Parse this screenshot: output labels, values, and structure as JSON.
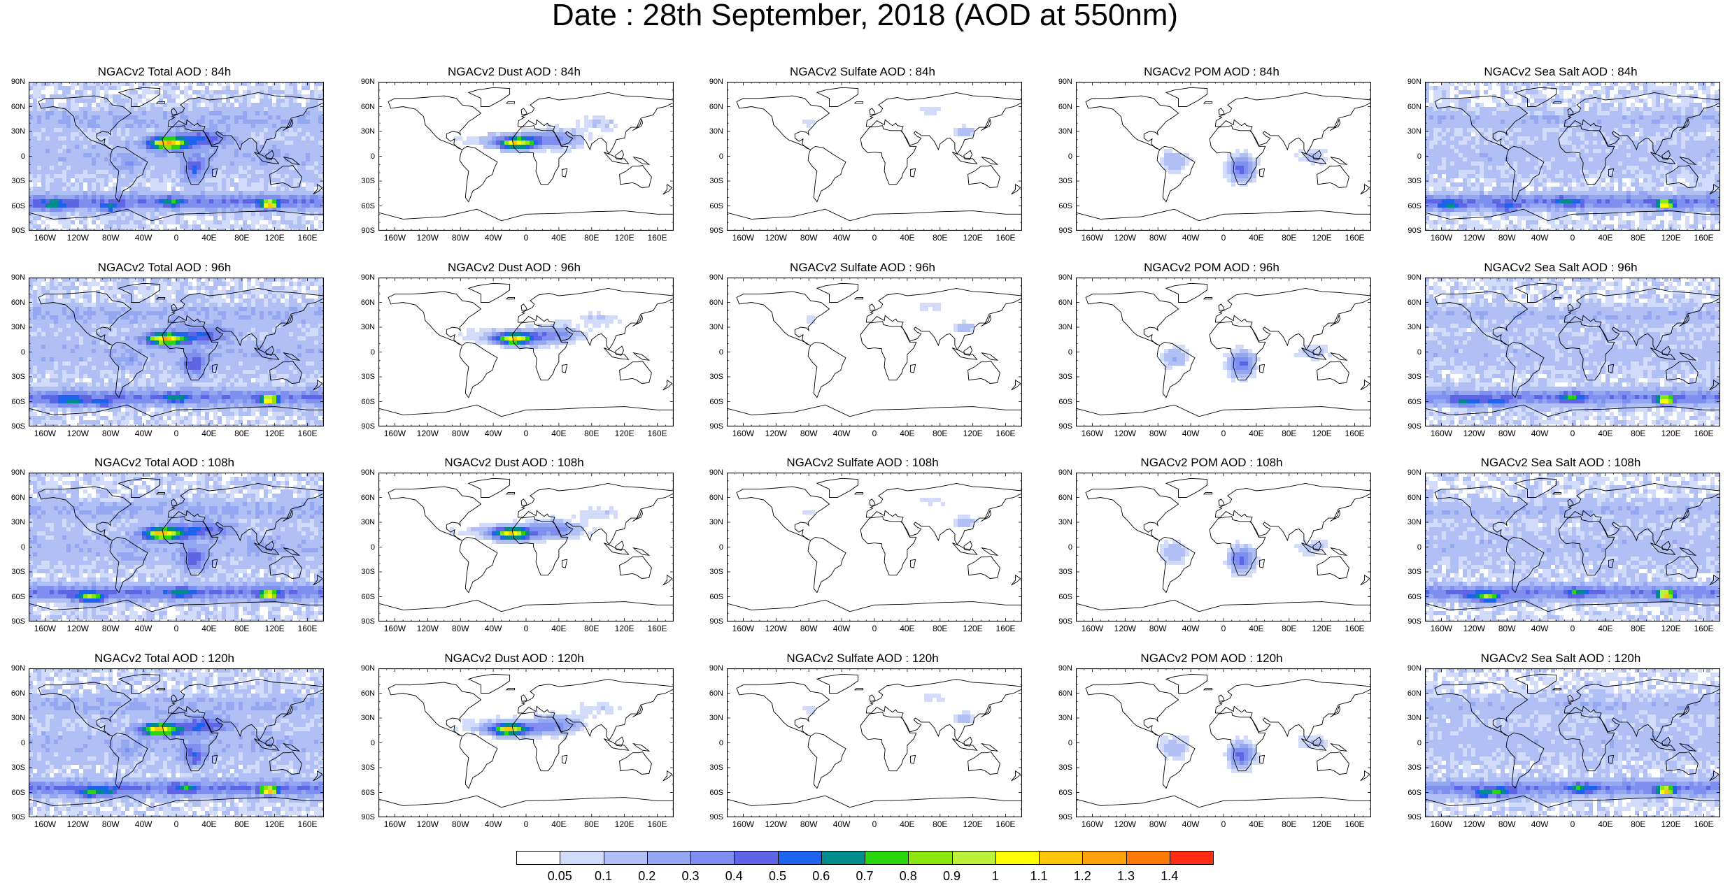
{
  "header": {
    "title": "Date : 28th September, 2018 (AOD at 550nm)"
  },
  "axes": {
    "lat_labels": [
      "90N",
      "60N",
      "30N",
      "0",
      "30S",
      "60S",
      "90S"
    ],
    "lon_labels": [
      "160W",
      "120W",
      "80W",
      "40W",
      "0",
      "40E",
      "80E",
      "120E",
      "160E"
    ]
  },
  "panels": [
    {
      "title": "NGACv2 Total AOD : 84h",
      "species": "total",
      "hour": 84
    },
    {
      "title": "NGACv2 Dust AOD : 84h",
      "species": "dust",
      "hour": 84
    },
    {
      "title": "NGACv2 Sulfate AOD : 84h",
      "species": "sulfate",
      "hour": 84
    },
    {
      "title": "NGACv2 POM AOD : 84h",
      "species": "pom",
      "hour": 84
    },
    {
      "title": "NGACv2 Sea Salt AOD : 84h",
      "species": "seasalt",
      "hour": 84
    },
    {
      "title": "NGACv2 Total AOD : 96h",
      "species": "total",
      "hour": 96
    },
    {
      "title": "NGACv2 Dust AOD : 96h",
      "species": "dust",
      "hour": 96
    },
    {
      "title": "NGACv2 Sulfate AOD : 96h",
      "species": "sulfate",
      "hour": 96
    },
    {
      "title": "NGACv2 POM AOD : 96h",
      "species": "pom",
      "hour": 96
    },
    {
      "title": "NGACv2 Sea Salt AOD : 96h",
      "species": "seasalt",
      "hour": 96
    },
    {
      "title": "NGACv2 Total AOD : 108h",
      "species": "total",
      "hour": 108
    },
    {
      "title": "NGACv2 Dust AOD : 108h",
      "species": "dust",
      "hour": 108
    },
    {
      "title": "NGACv2 Sulfate AOD : 108h",
      "species": "sulfate",
      "hour": 108
    },
    {
      "title": "NGACv2 POM AOD : 108h",
      "species": "pom",
      "hour": 108
    },
    {
      "title": "NGACv2 Sea Salt AOD : 108h",
      "species": "seasalt",
      "hour": 108
    },
    {
      "title": "NGACv2 Total AOD : 120h",
      "species": "total",
      "hour": 120
    },
    {
      "title": "NGACv2 Dust AOD : 120h",
      "species": "dust",
      "hour": 120
    },
    {
      "title": "NGACv2 Sulfate AOD : 120h",
      "species": "sulfate",
      "hour": 120
    },
    {
      "title": "NGACv2 POM AOD : 120h",
      "species": "pom",
      "hour": 120
    },
    {
      "title": "NGACv2 Sea Salt  AOD : 120h",
      "species": "seasalt",
      "hour": 120
    }
  ],
  "colorbar": {
    "labels": [
      "0.05",
      "0.1",
      "0.2",
      "0.3",
      "0.4",
      "0.5",
      "0.6",
      "0.7",
      "0.8",
      "0.9",
      "1",
      "1.1",
      "1.2",
      "1.3",
      "1.4"
    ],
    "colors": [
      "#ffffff",
      "#d2dcfa",
      "#b0c0f5",
      "#94a8f2",
      "#7f8ff0",
      "#5f66e6",
      "#1d63ee",
      "#008c8c",
      "#2bd60f",
      "#8ee60f",
      "#bdf23c",
      "#ffff00",
      "#ffc60a",
      "#ffa10a",
      "#ff7a05",
      "#ff2c14"
    ]
  }
}
